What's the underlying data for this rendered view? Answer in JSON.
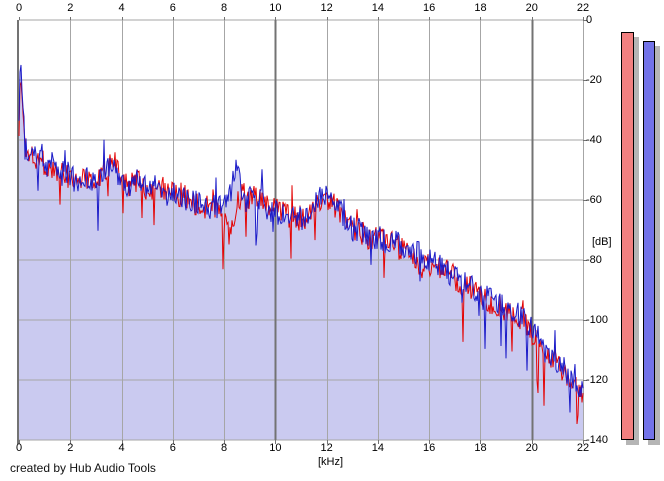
{
  "app": {
    "credit": "created by Hub Audio Tools"
  },
  "colors": {
    "background": "#ffffff",
    "grid_minor": "#a6a6a6",
    "grid_major": "#737373",
    "axis_border": "#737373",
    "fill_under_curve": "#cacaf0",
    "trace_red": "#e40404",
    "trace_blue": "#1b1bc8",
    "meter_red": "#f28080",
    "meter_blue": "#7373e8",
    "meter_shadow": "#b5b5b5",
    "label_color": "#000000"
  },
  "chart_data": {
    "type": "line",
    "title": "",
    "xlabel": "[kHz]",
    "ylabel": "[dB]",
    "xlim": [
      0,
      22
    ],
    "ylim": [
      -140,
      0
    ],
    "grid": true,
    "x_ticks": [
      0,
      2,
      4,
      6,
      8,
      10,
      12,
      14,
      16,
      18,
      20,
      22
    ],
    "x_major_ticks": [
      10,
      20
    ],
    "y_ticks": [
      0,
      -20,
      -40,
      -60,
      -80,
      -100,
      -120,
      -140
    ],
    "x_tick_labels": [
      "0",
      "2",
      "4",
      "6",
      "8",
      "10",
      "12",
      "14",
      "16",
      "18",
      "20",
      "22"
    ],
    "y_tick_labels": [
      "0",
      "-20",
      "-40",
      "-60",
      "-80",
      "-100",
      "-120",
      "-140"
    ],
    "noise_db": 4.2,
    "series": [
      {
        "name": "spectrum-red",
        "color": "#e40404",
        "fill": null,
        "points": [
          [
            0,
            -36
          ],
          [
            0.06,
            -18
          ],
          [
            0.12,
            -26
          ],
          [
            0.2,
            -38
          ],
          [
            0.3,
            -45
          ],
          [
            0.5,
            -44
          ],
          [
            0.7,
            -46
          ],
          [
            0.9,
            -47
          ],
          [
            1.1,
            -49
          ],
          [
            1.3,
            -50
          ],
          [
            1.6,
            -51
          ],
          [
            1.9,
            -52
          ],
          [
            2.2,
            -52
          ],
          [
            2.5,
            -53
          ],
          [
            2.8,
            -52
          ],
          [
            3.1,
            -53
          ],
          [
            3.4,
            -49
          ],
          [
            3.7,
            -47
          ],
          [
            4,
            -53
          ],
          [
            4.3,
            -55
          ],
          [
            4.6,
            -54
          ],
          [
            5,
            -56
          ],
          [
            5.4,
            -56
          ],
          [
            5.8,
            -57
          ],
          [
            6.2,
            -58
          ],
          [
            6.6,
            -59
          ],
          [
            7,
            -62
          ],
          [
            7.4,
            -62
          ],
          [
            7.8,
            -63
          ],
          [
            8.2,
            -72
          ],
          [
            8.5,
            -60
          ],
          [
            8.8,
            -58
          ],
          [
            9.1,
            -60
          ],
          [
            9.4,
            -58
          ],
          [
            9.7,
            -62
          ],
          [
            10,
            -63
          ],
          [
            10.4,
            -65
          ],
          [
            10.8,
            -66
          ],
          [
            11.2,
            -66
          ],
          [
            11.5,
            -64
          ],
          [
            11.8,
            -60
          ],
          [
            12.1,
            -59
          ],
          [
            12.4,
            -63
          ],
          [
            12.7,
            -67
          ],
          [
            13,
            -69
          ],
          [
            13.3,
            -70
          ],
          [
            13.6,
            -74
          ],
          [
            14,
            -73
          ],
          [
            14.4,
            -74
          ],
          [
            14.8,
            -76
          ],
          [
            15.2,
            -76
          ],
          [
            15.6,
            -84
          ],
          [
            16,
            -81
          ],
          [
            16.4,
            -83
          ],
          [
            16.8,
            -84
          ],
          [
            17.2,
            -88
          ],
          [
            17.6,
            -89
          ],
          [
            18,
            -92
          ],
          [
            18.4,
            -94
          ],
          [
            18.8,
            -96
          ],
          [
            19.2,
            -98
          ],
          [
            19.6,
            -100
          ],
          [
            20,
            -104
          ],
          [
            20.4,
            -108
          ],
          [
            20.8,
            -113
          ],
          [
            21.2,
            -117
          ],
          [
            21.6,
            -121
          ],
          [
            22,
            -126
          ]
        ]
      },
      {
        "name": "spectrum-blue",
        "color": "#1b1bc8",
        "fill": "#cacaf0",
        "points": [
          [
            0,
            -34
          ],
          [
            0.06,
            -14
          ],
          [
            0.12,
            -22
          ],
          [
            0.2,
            -35
          ],
          [
            0.3,
            -44
          ],
          [
            0.5,
            -42
          ],
          [
            0.7,
            -47
          ],
          [
            0.9,
            -45
          ],
          [
            1.1,
            -50
          ],
          [
            1.3,
            -48
          ],
          [
            1.6,
            -52
          ],
          [
            1.9,
            -50
          ],
          [
            2.2,
            -54
          ],
          [
            2.5,
            -51
          ],
          [
            2.8,
            -54
          ],
          [
            3.1,
            -52
          ],
          [
            3.4,
            -50
          ],
          [
            3.7,
            -48
          ],
          [
            4,
            -54
          ],
          [
            4.3,
            -56
          ],
          [
            4.6,
            -53
          ],
          [
            5,
            -57
          ],
          [
            5.4,
            -55
          ],
          [
            5.8,
            -58
          ],
          [
            6.2,
            -57
          ],
          [
            6.6,
            -60
          ],
          [
            7,
            -61
          ],
          [
            7.4,
            -63
          ],
          [
            7.8,
            -62
          ],
          [
            8.2,
            -60
          ],
          [
            8.5,
            -48
          ],
          [
            8.8,
            -62
          ],
          [
            9.1,
            -55
          ],
          [
            9.4,
            -60
          ],
          [
            9.7,
            -63
          ],
          [
            10,
            -64
          ],
          [
            10.4,
            -66
          ],
          [
            10.8,
            -65
          ],
          [
            11.2,
            -67
          ],
          [
            11.5,
            -63
          ],
          [
            11.8,
            -58
          ],
          [
            12.1,
            -57
          ],
          [
            12.4,
            -62
          ],
          [
            12.7,
            -66
          ],
          [
            13,
            -70
          ],
          [
            13.3,
            -68
          ],
          [
            13.6,
            -73
          ],
          [
            14,
            -72
          ],
          [
            14.4,
            -75
          ],
          [
            14.8,
            -74
          ],
          [
            15.2,
            -77
          ],
          [
            15.6,
            -78
          ],
          [
            16,
            -80
          ],
          [
            16.4,
            -82
          ],
          [
            16.8,
            -85
          ],
          [
            17.2,
            -87
          ],
          [
            17.6,
            -88
          ],
          [
            18,
            -91
          ],
          [
            18.4,
            -93
          ],
          [
            18.8,
            -95
          ],
          [
            19.2,
            -97
          ],
          [
            19.6,
            -99
          ],
          [
            20,
            -103
          ],
          [
            20.4,
            -107
          ],
          [
            20.8,
            -112
          ],
          [
            21.2,
            -116
          ],
          [
            21.6,
            -120
          ],
          [
            22,
            -123
          ]
        ]
      }
    ],
    "meters": [
      {
        "name": "level-meter-red",
        "value_db": -4,
        "color": "#f28080"
      },
      {
        "name": "level-meter-blue",
        "value_db": -7,
        "color": "#7373e8"
      }
    ]
  }
}
